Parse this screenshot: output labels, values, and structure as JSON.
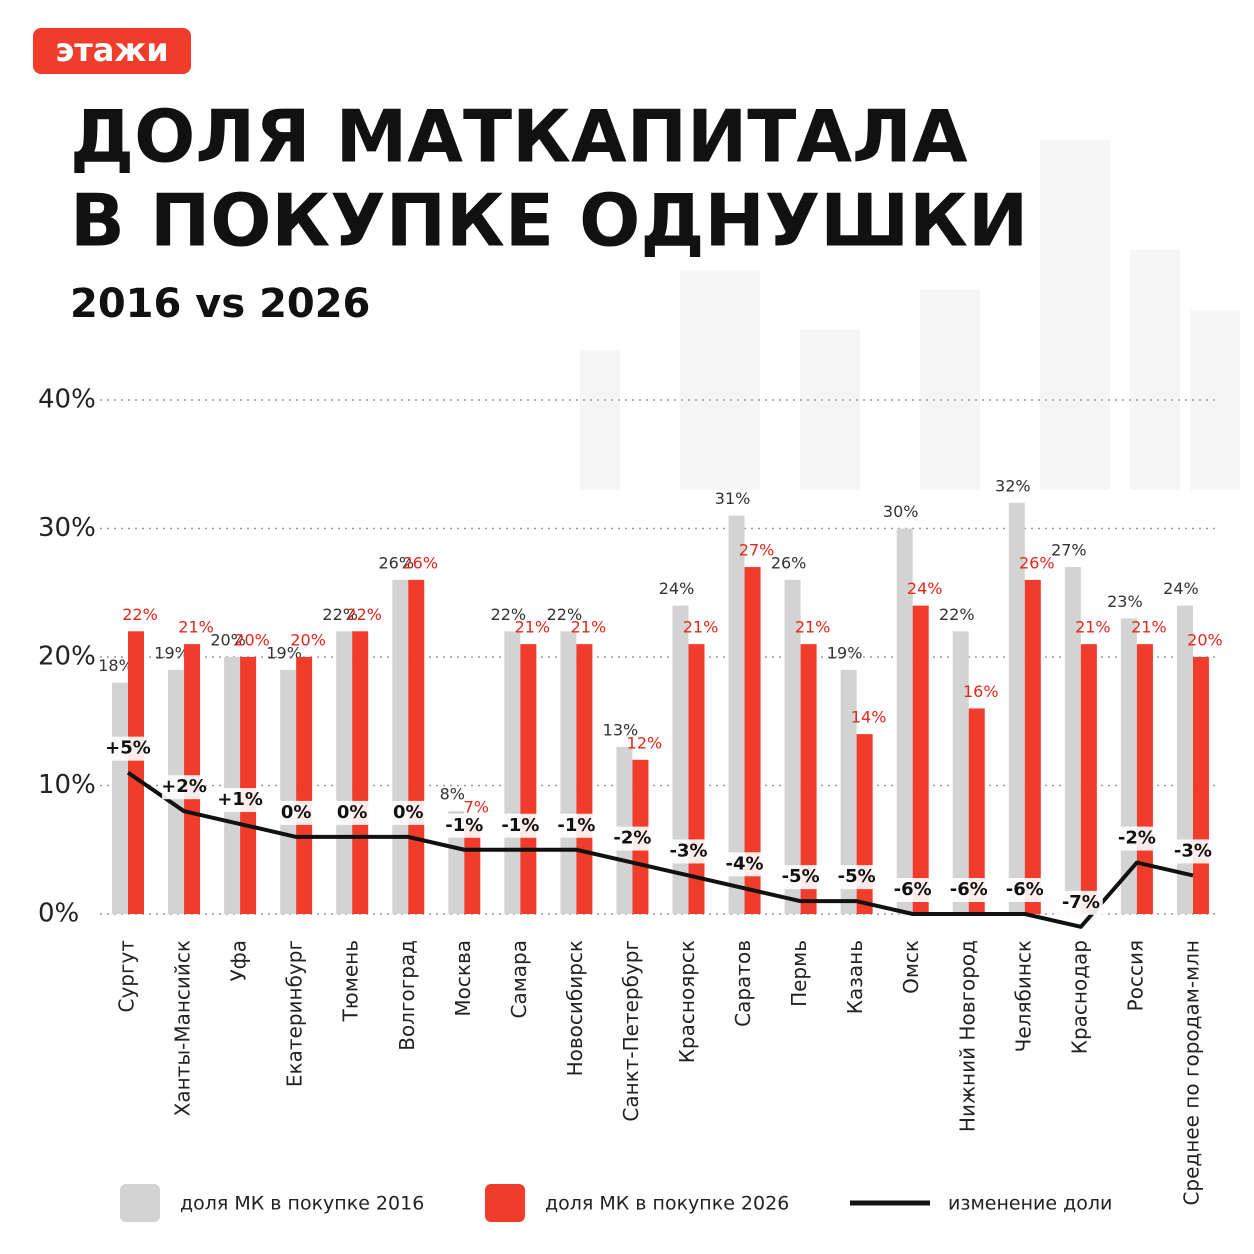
{
  "brand": "этажи",
  "chart_data": {
    "type": "bar",
    "title": [
      "ДОЛЯ МАТКАПИТАЛА",
      "В ПОКУПКЕ ОДНУШКИ"
    ],
    "subtitle": "2016 vs 2026",
    "categories": [
      "Сургут",
      "Ханты-Мансийск",
      "Уфа",
      "Екатеринбург",
      "Тюмень",
      "Волгоград",
      "Москва",
      "Самара",
      "Новосибирск",
      "Санкт-Петербург",
      "Красноярск",
      "Саратов",
      "Пермь",
      "Казань",
      "Омск",
      "Нижний Новгород",
      "Челябинск",
      "Краснодар",
      "Россия",
      "Среднее по городам-млн"
    ],
    "series": [
      {
        "name": "доля МК в покупке 2016",
        "color": "#d3d3d3",
        "label_color": "#333333",
        "values": [
          18,
          19,
          20,
          19,
          22,
          26,
          8,
          22,
          22,
          13,
          24,
          31,
          26,
          19,
          30,
          22,
          32,
          27,
          23,
          24
        ],
        "value_labels": [
          "18%",
          "19%",
          "20%",
          "19%",
          "22%",
          "26%",
          "8%",
          "22%",
          "22%",
          "13%",
          "24%",
          "31%",
          "26%",
          "19%",
          "30%",
          "22%",
          "32%",
          "27%",
          "23%",
          "24%"
        ]
      },
      {
        "name": "доля МК в покупке 2026",
        "color": "#f03c2a",
        "label_color": "#e2281a",
        "values": [
          22,
          21,
          20,
          20,
          22,
          26,
          7,
          21,
          21,
          12,
          21,
          27,
          21,
          14,
          24,
          16,
          26,
          21,
          21,
          20
        ],
        "value_labels": [
          "22%",
          "21%",
          "20%",
          "20%",
          "22%",
          "26%",
          "7%",
          "21%",
          "21%",
          "12%",
          "21%",
          "27%",
          "21%",
          "14%",
          "24%",
          "16%",
          "26%",
          "21%",
          "21%",
          "20%"
        ]
      },
      {
        "name": "изменение доли",
        "color": "#111111",
        "type": "line",
        "axis": "y2",
        "values": [
          5,
          2,
          1,
          0,
          0,
          0,
          -1,
          -1,
          -1,
          -2,
          -3,
          -4,
          -5,
          -5,
          -6,
          -6,
          -6,
          -7,
          -2,
          -3
        ],
        "value_labels": [
          "+5%",
          "+2%",
          "+1%",
          "0%",
          "0%",
          "0%",
          "-1%",
          "-1%",
          "-1%",
          "-2%",
          "-3%",
          "-4%",
          "-5%",
          "-5%",
          "-6%",
          "-6%",
          "-6%",
          "-7%",
          "-2%",
          "-3%"
        ]
      }
    ],
    "ylim": [
      0,
      40
    ],
    "yticks": [
      {
        "value": 0,
        "label": "0%"
      },
      {
        "value": 10,
        "label": "10%"
      },
      {
        "value": 20,
        "label": "20%"
      },
      {
        "value": 30,
        "label": "30%"
      },
      {
        "value": 40,
        "label": "40%"
      }
    ],
    "y2lim": [
      -6,
      34
    ],
    "grid": true,
    "legend": "bottom"
  }
}
